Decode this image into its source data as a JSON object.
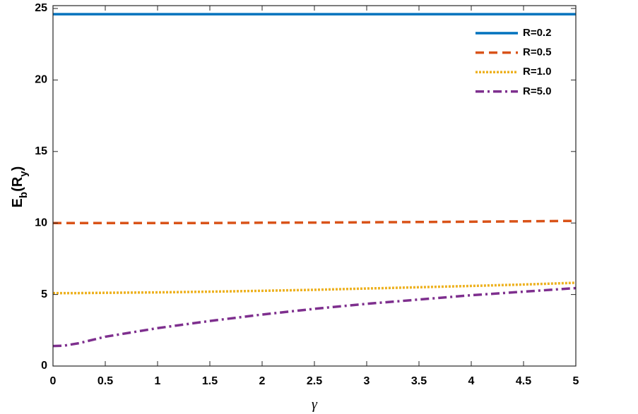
{
  "chart_data": {
    "type": "line",
    "x_label": "γ",
    "y_label": [
      "E",
      "b",
      "(R",
      "y",
      ")"
    ],
    "x": [
      0,
      0.1,
      0.25,
      0.5,
      1,
      1.5,
      2,
      2.5,
      3,
      3.5,
      4,
      4.5,
      5
    ],
    "series": [
      {
        "name": "R=0.2",
        "color": "#0072BD",
        "dash": "solid",
        "values": [
          24.6,
          24.6,
          24.6,
          24.6,
          24.6,
          24.6,
          24.6,
          24.6,
          24.6,
          24.6,
          24.6,
          24.6,
          24.6
        ]
      },
      {
        "name": "R=0.5",
        "color": "#D95319",
        "dash": "dashed",
        "values": [
          10,
          10,
          10,
          10,
          10,
          10,
          10.02,
          10.03,
          10.05,
          10.07,
          10.09,
          10.12,
          10.15
        ]
      },
      {
        "name": "R=1.0",
        "color": "#EDB120",
        "dash": "dotted",
        "values": [
          5.1,
          5.1,
          5.1,
          5.12,
          5.15,
          5.2,
          5.26,
          5.33,
          5.42,
          5.51,
          5.6,
          5.7,
          5.82
        ]
      },
      {
        "name": "R=5.0",
        "color": "#7E2F8E",
        "dash": "dashdot",
        "values": [
          1.4,
          1.42,
          1.6,
          2.05,
          2.65,
          3.15,
          3.6,
          4.0,
          4.35,
          4.65,
          4.95,
          5.2,
          5.45
        ]
      }
    ],
    "xlim": [
      0,
      5
    ],
    "ylim": [
      0,
      25
    ],
    "xticks": [
      0,
      0.5,
      1,
      1.5,
      2,
      2.5,
      3,
      3.5,
      4,
      4.5,
      5
    ],
    "yticks": [
      0,
      5,
      10,
      15,
      20,
      25
    ],
    "grid": false,
    "legend": "upper right"
  }
}
